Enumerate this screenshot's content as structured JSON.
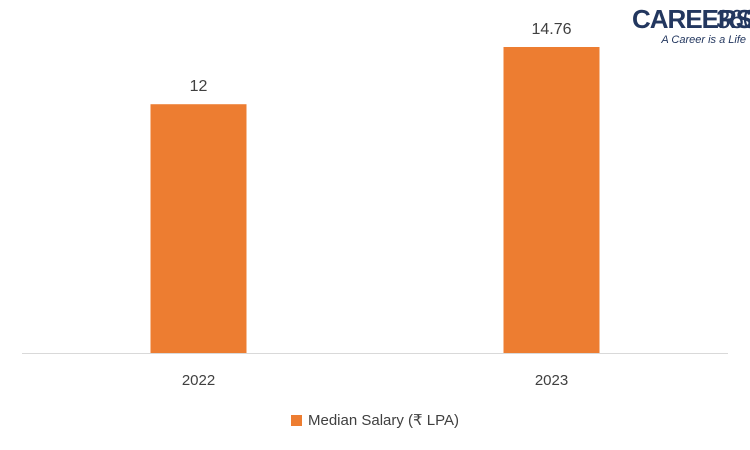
{
  "chart_data": {
    "type": "bar",
    "categories": [
      "2022",
      "2023"
    ],
    "series": [
      {
        "name": "Median Salary (₹ LPA)",
        "values": [
          12,
          14.76
        ],
        "data_labels": [
          "12",
          "14.76"
        ],
        "color": "#ED7D31"
      }
    ],
    "title": "",
    "xlabel": "",
    "ylabel": "",
    "ylim": [
      0,
      15.5
    ],
    "grid": false,
    "legend": "bottom-center",
    "axis_color": "#D9D9D9",
    "label_color": "#404040"
  },
  "logo": {
    "main": "CAREERS",
    "number": "360",
    "tagline": "A Career is a Life",
    "color": "#23375f"
  }
}
